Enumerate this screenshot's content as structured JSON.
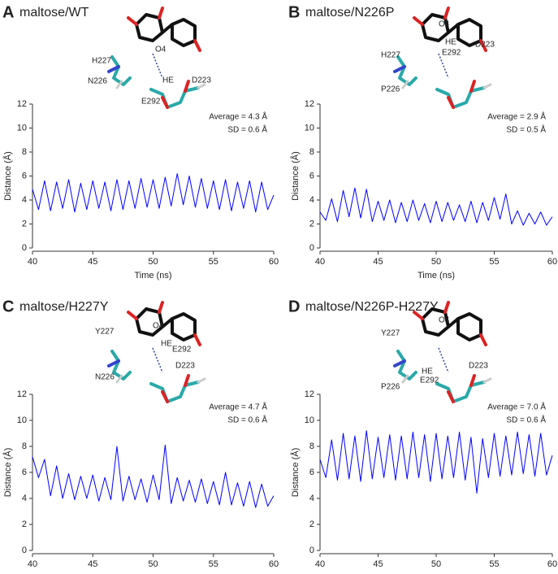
{
  "chart_data": [
    {
      "type": "line",
      "label": "A",
      "title": "maltose/WT",
      "x_label": "Time (ns)",
      "y_label": "Distance (Å)",
      "stats": [
        "Average = 4.3 Å",
        "SD = 0.6 Å"
      ],
      "annotations": [
        "H227",
        "N226",
        "O4",
        "HE",
        "D223",
        "E292"
      ],
      "xlim": [
        40,
        60
      ],
      "xticks": [
        40,
        45,
        50,
        55,
        60
      ],
      "ylim": [
        0,
        12
      ],
      "yticks": [
        0,
        2,
        4,
        6,
        8,
        10,
        12
      ],
      "color": "#0000ff",
      "x": [
        40,
        40.5,
        41,
        41.5,
        42,
        42.5,
        43,
        43.5,
        44,
        44.5,
        45,
        45.5,
        46,
        46.5,
        47,
        47.5,
        48,
        48.5,
        49,
        49.5,
        50,
        50.5,
        51,
        51.5,
        52,
        52.5,
        53,
        53.5,
        54,
        54.5,
        55,
        55.5,
        56,
        56.5,
        57,
        57.5,
        58,
        58.5,
        59,
        59.5,
        60
      ],
      "values": [
        4.9,
        3.2,
        5.6,
        3.1,
        5.5,
        3.3,
        5.7,
        3.0,
        5.4,
        3.2,
        5.6,
        3.3,
        5.5,
        3.1,
        5.7,
        3.2,
        5.6,
        3.3,
        5.8,
        3.4,
        5.7,
        3.3,
        5.9,
        3.5,
        6.2,
        3.6,
        6.0,
        3.4,
        5.8,
        3.3,
        5.6,
        3.2,
        5.7,
        3.1,
        5.5,
        3.3,
        5.6,
        3.0,
        5.5,
        3.2,
        4.4
      ]
    },
    {
      "type": "line",
      "label": "B",
      "title": "maltose/N226P",
      "x_label": "Time (ns)",
      "y_label": "Distance (Å)",
      "stats": [
        "Average = 2.9 Å",
        "SD = 0.5 Å"
      ],
      "annotations": [
        "H227",
        "P226",
        "O4",
        "HE",
        "D223",
        "E292"
      ],
      "xlim": [
        40,
        60
      ],
      "xticks": [
        40,
        45,
        50,
        55,
        60
      ],
      "ylim": [
        0,
        12
      ],
      "yticks": [
        0,
        2,
        4,
        6,
        8,
        10,
        12
      ],
      "color": "#0000ff",
      "x": [
        40,
        40.5,
        41,
        41.5,
        42,
        42.5,
        43,
        43.5,
        44,
        44.5,
        45,
        45.5,
        46,
        46.5,
        47,
        47.5,
        48,
        48.5,
        49,
        49.5,
        50,
        50.5,
        51,
        51.5,
        52,
        52.5,
        53,
        53.5,
        54,
        54.5,
        55,
        55.5,
        56,
        56.5,
        57,
        57.5,
        58,
        58.5,
        59,
        59.5,
        60
      ],
      "values": [
        3.0,
        2.3,
        4.1,
        2.2,
        4.8,
        2.6,
        5.0,
        2.5,
        4.9,
        2.2,
        3.9,
        2.3,
        4.0,
        2.1,
        3.8,
        2.2,
        4.0,
        2.3,
        3.7,
        2.1,
        3.9,
        2.2,
        3.8,
        2.3,
        3.6,
        2.2,
        3.9,
        2.1,
        3.8,
        2.3,
        4.2,
        2.4,
        4.5,
        2.0,
        3.1,
        1.9,
        2.9,
        2.0,
        3.0,
        1.9,
        2.6
      ]
    },
    {
      "type": "line",
      "label": "C",
      "title": "maltose/H227Y",
      "x_label": "Time (ns)",
      "y_label": "Distance (Å)",
      "stats": [
        "Average = 4.7 Å",
        "SD = 0.6 Å"
      ],
      "annotations": [
        "Y227",
        "N226",
        "O4",
        "HE",
        "E292",
        "D223"
      ],
      "xlim": [
        40,
        60
      ],
      "xticks": [
        40,
        45,
        50,
        55,
        60
      ],
      "ylim": [
        0,
        12
      ],
      "yticks": [
        0,
        2,
        4,
        6,
        8,
        10,
        12
      ],
      "color": "#0000ff",
      "x": [
        40,
        40.5,
        41,
        41.5,
        42,
        42.5,
        43,
        43.5,
        44,
        44.5,
        45,
        45.5,
        46,
        46.5,
        47,
        47.5,
        48,
        48.5,
        49,
        49.5,
        50,
        50.5,
        51,
        51.5,
        52,
        52.5,
        53,
        53.5,
        54,
        54.5,
        55,
        55.5,
        56,
        56.5,
        57,
        57.5,
        58,
        58.5,
        59,
        59.5,
        60
      ],
      "values": [
        7.2,
        5.6,
        7.0,
        4.2,
        6.5,
        4.0,
        5.9,
        3.9,
        5.7,
        4.0,
        5.8,
        3.8,
        5.6,
        3.9,
        8.0,
        3.8,
        5.7,
        3.9,
        5.5,
        3.7,
        5.8,
        3.9,
        8.1,
        3.6,
        5.6,
        3.8,
        5.4,
        3.7,
        5.5,
        3.6,
        5.3,
        3.5,
        6.0,
        3.5,
        5.2,
        3.4,
        5.3,
        3.3,
        5.1,
        3.4,
        4.2
      ]
    },
    {
      "type": "line",
      "label": "D",
      "title": "maltose/N226P-H227Y",
      "x_label": "Time (ns)",
      "y_label": "Distance (Å)",
      "stats": [
        "Average = 7.0 Å",
        "SD = 0.6 Å"
      ],
      "annotations": [
        "Y227",
        "P226",
        "O4",
        "HE",
        "E292",
        "D223"
      ],
      "xlim": [
        40,
        60
      ],
      "xticks": [
        40,
        45,
        50,
        55,
        60
      ],
      "ylim": [
        0,
        12
      ],
      "yticks": [
        0,
        2,
        4,
        6,
        8,
        10,
        12
      ],
      "color": "#0000ff",
      "x": [
        40,
        40.5,
        41,
        41.5,
        42,
        42.5,
        43,
        43.5,
        44,
        44.5,
        45,
        45.5,
        46,
        46.5,
        47,
        47.5,
        48,
        48.5,
        49,
        49.5,
        50,
        50.5,
        51,
        51.5,
        52,
        52.5,
        53,
        53.5,
        54,
        54.5,
        55,
        55.5,
        56,
        56.5,
        57,
        57.5,
        58,
        58.5,
        59,
        59.5,
        60
      ],
      "values": [
        7.0,
        5.6,
        8.5,
        5.4,
        9.0,
        5.5,
        8.8,
        5.3,
        9.2,
        5.5,
        8.7,
        5.6,
        8.9,
        5.4,
        8.8,
        5.5,
        9.1,
        5.6,
        8.9,
        5.3,
        9.0,
        5.5,
        8.8,
        5.6,
        9.1,
        5.4,
        8.7,
        4.4,
        8.6,
        5.6,
        9.0,
        5.7,
        8.8,
        5.8,
        9.1,
        5.9,
        8.9,
        5.7,
        9.0,
        5.8,
        7.3
      ]
    }
  ]
}
